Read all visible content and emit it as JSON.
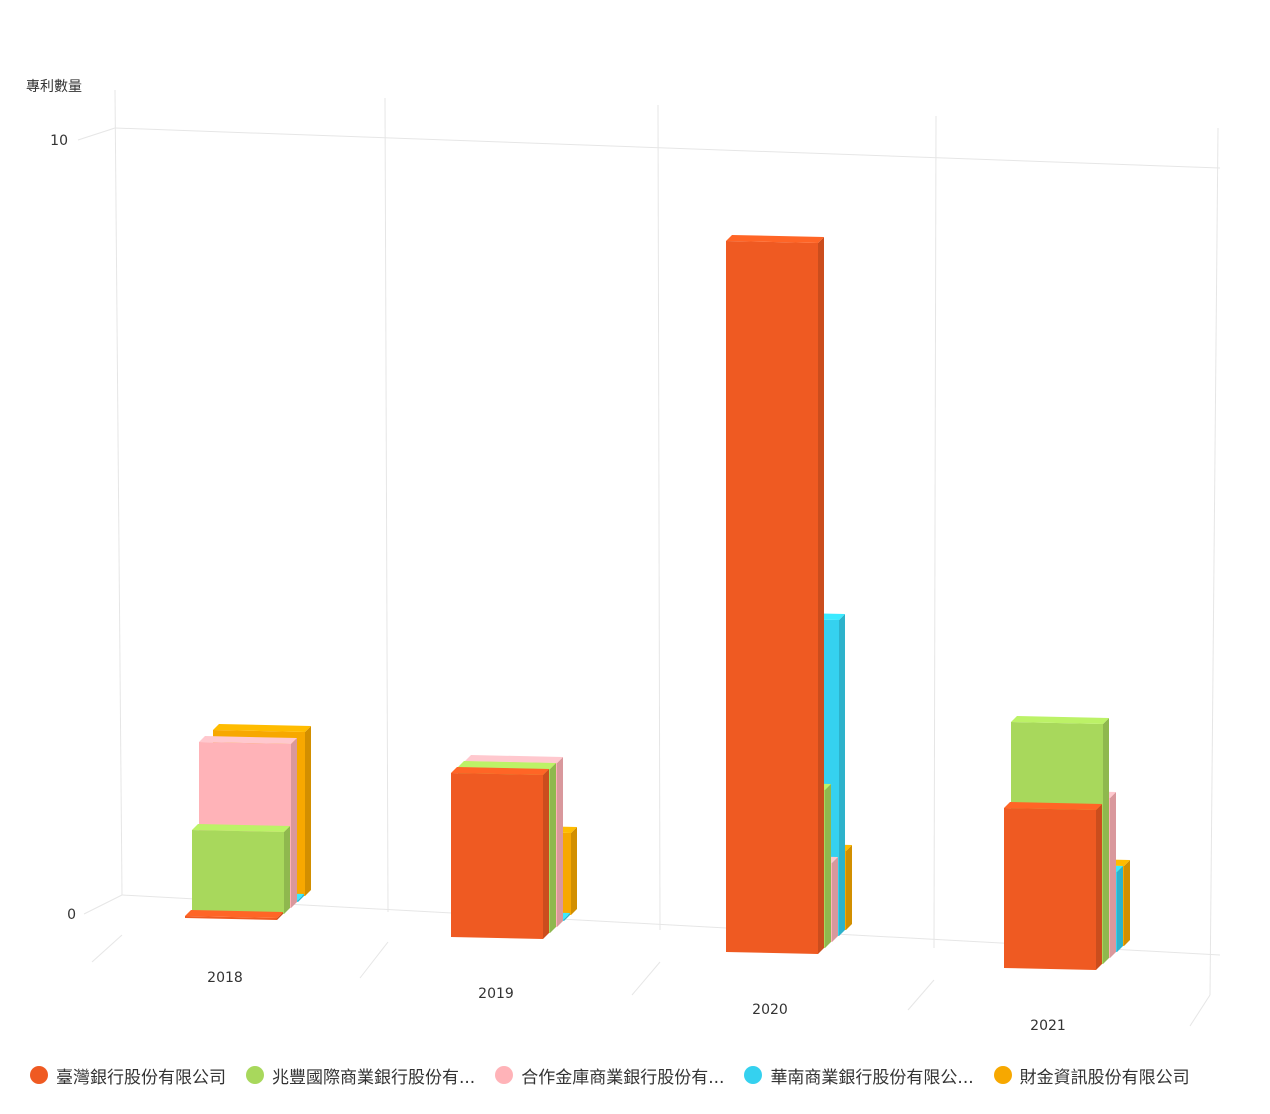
{
  "chart_data": {
    "type": "bar",
    "ylabel": "專利數量",
    "ylim": [
      0,
      10
    ],
    "yticks": [
      "0",
      "10"
    ],
    "categories": [
      "2018",
      "2019",
      "2020",
      "2021"
    ],
    "series": [
      {
        "name": "臺灣銀行股份有限公司",
        "color": "#ef5a22",
        "values": [
          0,
          2,
          9,
          2
        ]
      },
      {
        "name": "兆豐國際商業銀行股份有...",
        "color": "#a8d85c",
        "values": [
          1,
          2,
          2,
          3
        ]
      },
      {
        "name": "合作金庫商業銀行股份有...",
        "color": "#ffb3b8",
        "values": [
          2,
          2,
          1,
          2
        ]
      },
      {
        "name": "華南商業銀行股份有限公...",
        "color": "#35d1ef",
        "values": [
          0,
          0,
          4,
          1
        ]
      },
      {
        "name": "財金資訊股份有限公司",
        "color": "#f7a800",
        "values": [
          2,
          1,
          1,
          1
        ]
      }
    ],
    "grid": true,
    "legend_position": "bottom"
  }
}
